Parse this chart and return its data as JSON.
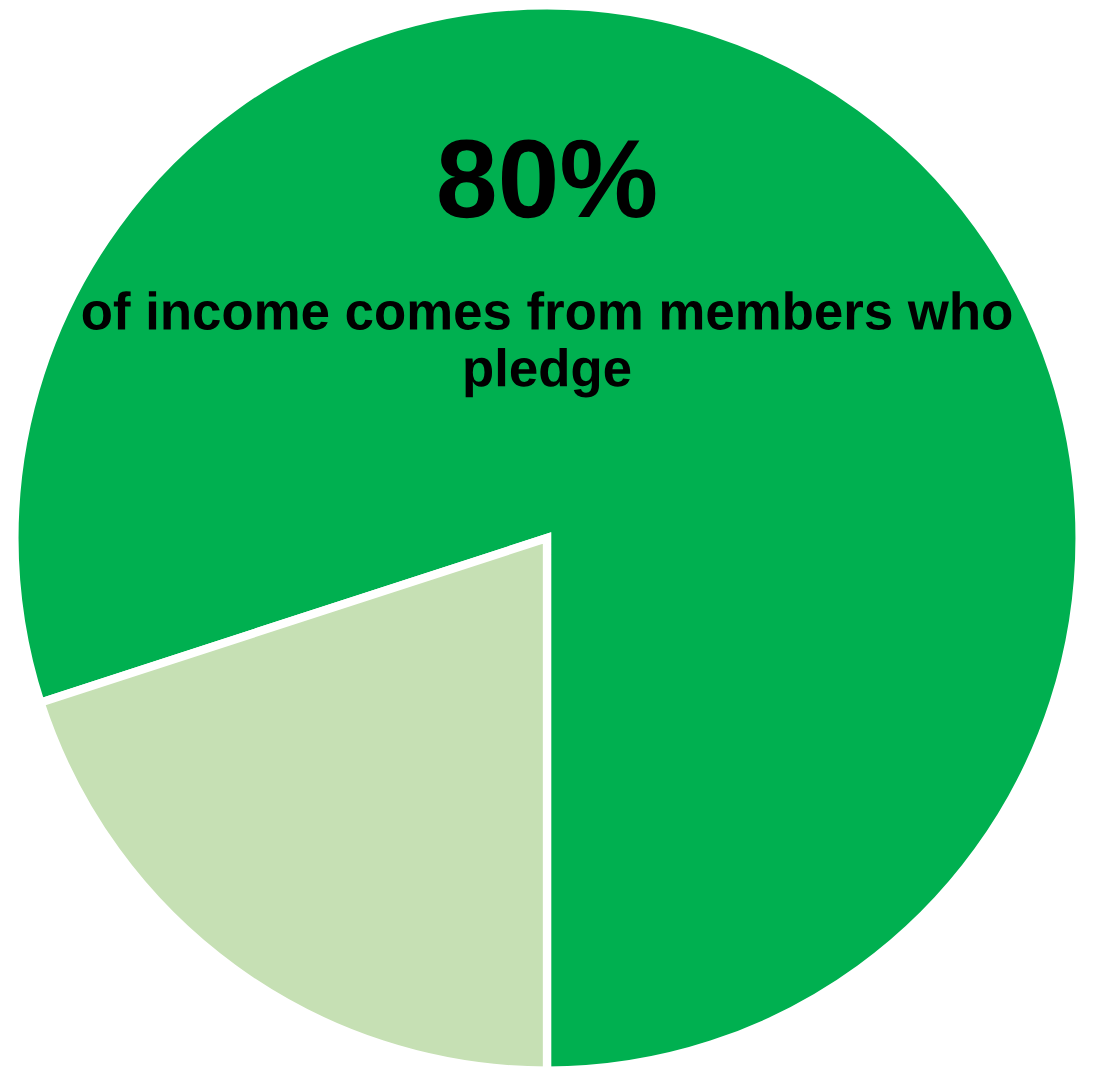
{
  "chart_data": {
    "type": "pie",
    "categories": [
      null,
      null
    ],
    "values": [
      80,
      20
    ],
    "colors": [
      "#00b050",
      "#c6e0b4"
    ],
    "value_labels": [
      "80%",
      null
    ],
    "annotations": [
      "of income comes from members who pledge"
    ]
  }
}
